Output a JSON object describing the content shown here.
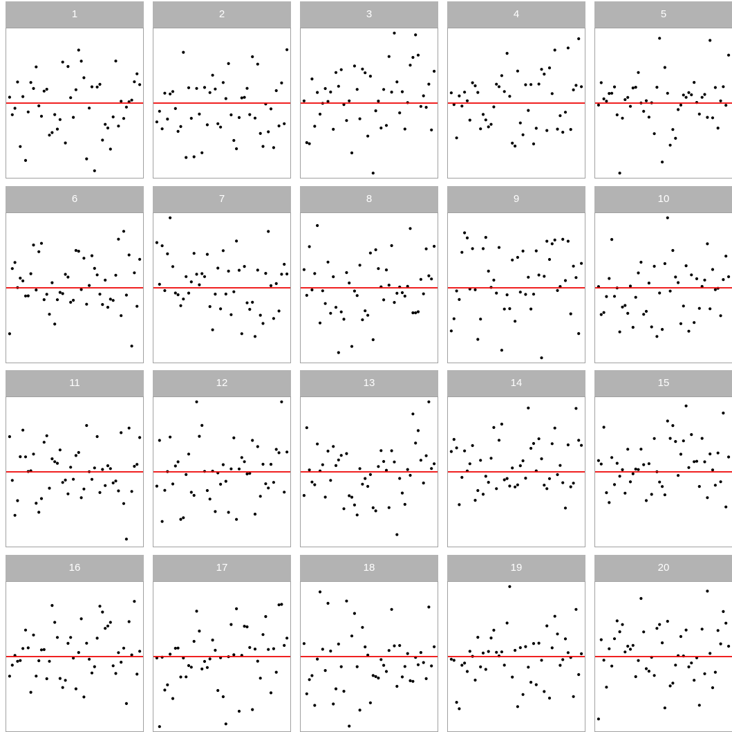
{
  "chart_data": {
    "type": "scatter",
    "facets": [
      "1",
      "2",
      "3",
      "4",
      "5",
      "6",
      "7",
      "8",
      "9",
      "10",
      "11",
      "12",
      "13",
      "14",
      "15",
      "16",
      "17",
      "18",
      "19",
      "20"
    ],
    "reference_line": {
      "y": 0,
      "color": "#ee0000"
    },
    "point_color": "#000000",
    "strip_color": "#b3b3b3",
    "strip_text_color": "#ffffff",
    "panel_border_color": "#a0a0a0",
    "ylim": [
      -2.8,
      2.8
    ],
    "xlim": [
      0.5,
      50.5
    ],
    "points_per_panel": 50,
    "note": "Each panel: 50 residual-style points scattered around y = 0; values estimated from the image."
  }
}
